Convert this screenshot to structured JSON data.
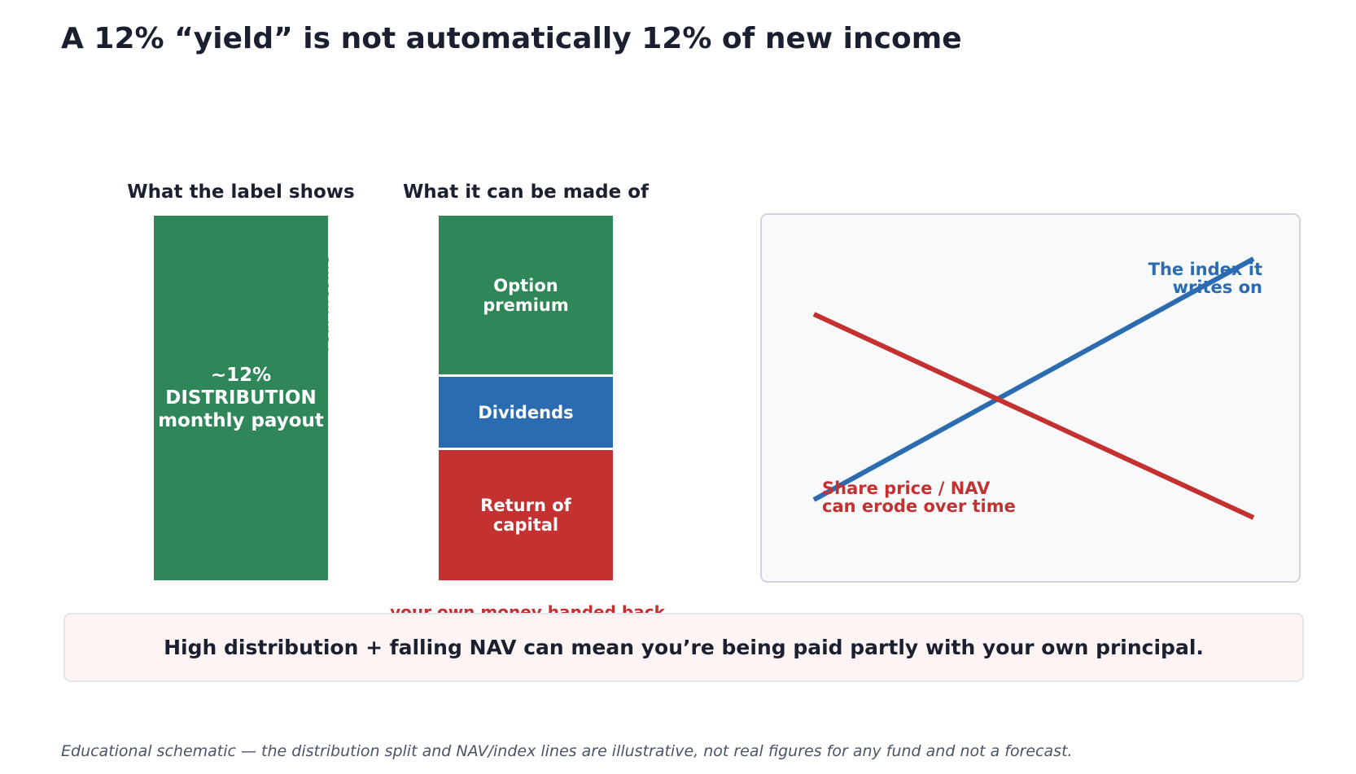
{
  "title": "A 12% “yield” is not automatically 12% of new income",
  "left_column": {
    "heading": "What the label shows",
    "bar_lines": [
      "~12%",
      "DISTRIBUTION",
      "monthly payout"
    ],
    "side_label": "real income",
    "color": "#2e8659"
  },
  "right_column": {
    "heading": "What it can be made of",
    "segments": [
      {
        "lines": [
          "Option",
          "premium"
        ],
        "color": "#2e8659"
      },
      {
        "lines": [
          "Dividends"
        ],
        "color": "#2b6bb0"
      },
      {
        "lines": [
          "Return of",
          "capital"
        ],
        "color": "#c43131"
      }
    ],
    "bottom_label": "your own money handed back"
  },
  "panel": {
    "index_lines": [
      "The index it",
      "writes on"
    ],
    "nav_lines": [
      "Share price / NAV",
      "can erode over time"
    ],
    "index_color": "#2b6bb0",
    "nav_color": "#c43131"
  },
  "callout": "High distribution + falling NAV can mean you’re being paid partly with your own principal.",
  "footnote": "Educational schematic — the distribution split and NAV/index lines are illustrative, not real figures for any fund and not a forecast."
}
